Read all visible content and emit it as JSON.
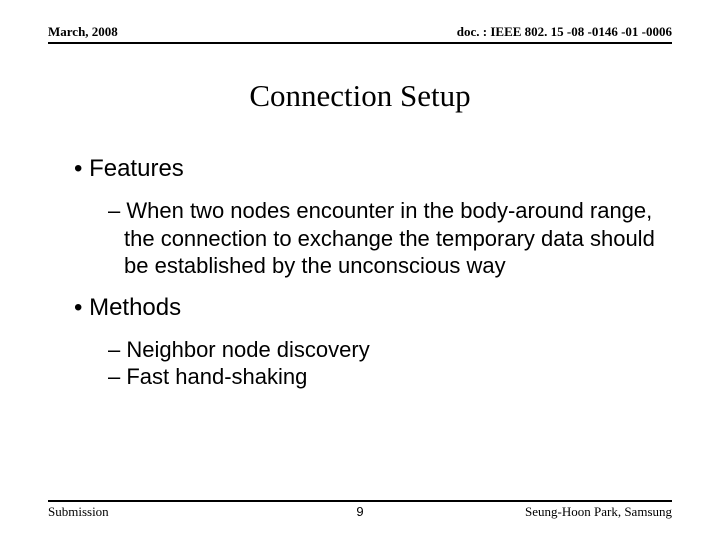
{
  "header": {
    "date": "March, 2008",
    "doc": "doc. : IEEE 802. 15 -08 -0146 -01 -0006"
  },
  "title": "Connection Setup",
  "body": {
    "b1": "Features",
    "b1_d1": "When two nodes encounter in the body-around range, the connection to exchange the temporary data should be established by the unconscious way",
    "b2": "Methods",
    "b2_d1": "Neighbor node discovery",
    "b2_d2": "Fast hand-shaking"
  },
  "footer": {
    "left": "Submission",
    "page": "9",
    "right": "Seung-Hoon Park, Samsung"
  }
}
